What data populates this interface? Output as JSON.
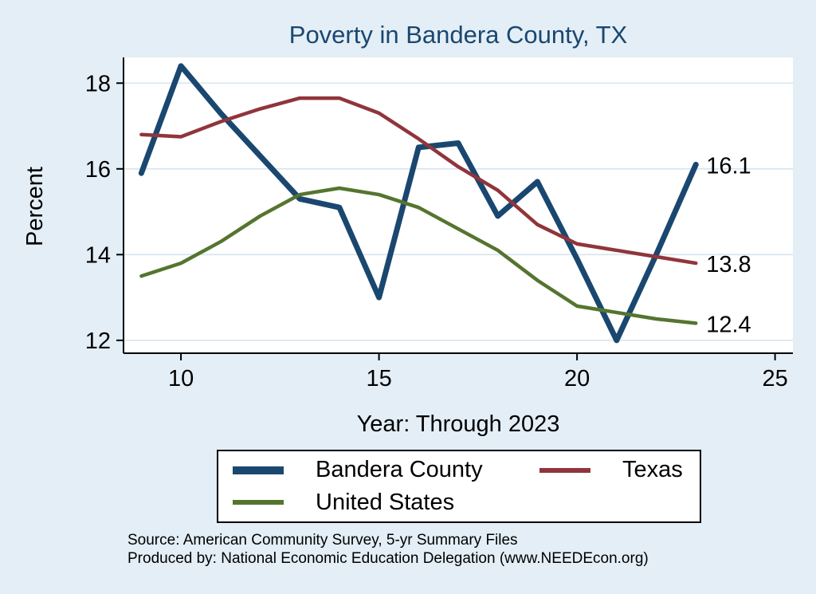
{
  "title": "Poverty in Bandera County, TX",
  "colors": {
    "background": "#e3eef6",
    "plot_background": "#ffffff",
    "gridline": "#d7e4ef",
    "axis": "#000000",
    "title": "#1a476f"
  },
  "chart_data": {
    "type": "line",
    "title": "Poverty in Bandera County, TX",
    "xlabel": "Year: Through 2023",
    "ylabel": "Percent",
    "xticks": [
      10,
      15,
      20,
      25
    ],
    "yticks": [
      12,
      14,
      16,
      18
    ],
    "xlim": [
      8.55,
      25.45
    ],
    "ylim": [
      11.7,
      18.6
    ],
    "grid": true,
    "legend_position": "bottom",
    "x": [
      9,
      10,
      11,
      12,
      13,
      14,
      15,
      16,
      17,
      18,
      19,
      20,
      21,
      22,
      23
    ],
    "series": [
      {
        "name": "Bandera County",
        "color": "#1a476f",
        "line_width": 7,
        "values": [
          15.9,
          18.4,
          17.3,
          16.3,
          15.3,
          15.1,
          13.0,
          16.5,
          16.6,
          14.9,
          15.7,
          13.9,
          12.0,
          14.0,
          16.1
        ],
        "end_label": "16.1"
      },
      {
        "name": "Texas",
        "color": "#90353b",
        "line_width": 4.5,
        "values": [
          16.8,
          16.75,
          17.1,
          17.4,
          17.65,
          17.65,
          17.3,
          16.7,
          16.05,
          15.5,
          14.7,
          14.25,
          14.1,
          13.95,
          13.8
        ],
        "end_label": "13.8"
      },
      {
        "name": "United States",
        "color": "#55752f",
        "line_width": 4.5,
        "values": [
          13.5,
          13.8,
          14.3,
          14.9,
          15.4,
          15.55,
          15.4,
          15.1,
          14.6,
          14.1,
          13.4,
          12.8,
          12.65,
          12.5,
          12.4
        ],
        "end_label": "12.4"
      }
    ]
  },
  "footer": {
    "source": "Source: American Community Survey, 5-yr Summary Files",
    "produced_by": "Produced by: National Economic Education Delegation (www.NEEDEcon.org)"
  }
}
